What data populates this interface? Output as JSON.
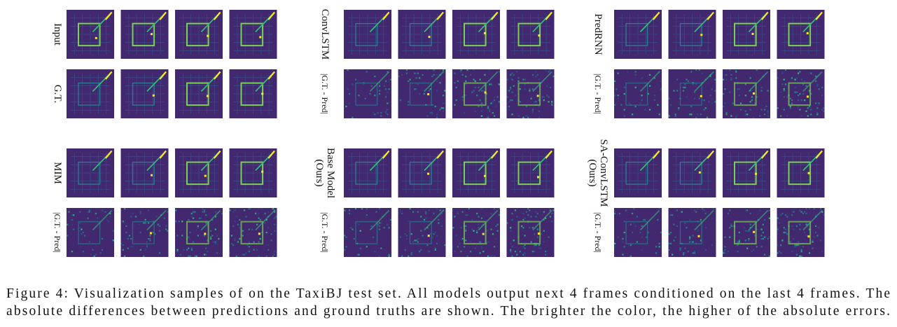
{
  "figure": {
    "panels": [
      {
        "rows": [
          {
            "label": [
              "Input"
            ]
          },
          {
            "label": [
              "G.T."
            ]
          }
        ]
      },
      {
        "rows": [
          {
            "label": [
              "ConvLSTM"
            ]
          },
          {
            "label": [
              "|G.T. - Pred|"
            ]
          }
        ]
      },
      {
        "rows": [
          {
            "label": [
              "PredRNN"
            ]
          },
          {
            "label": [
              "|G.T. - Pred|"
            ]
          }
        ]
      },
      {
        "rows": [
          {
            "label": [
              "MIM"
            ]
          },
          {
            "label": [
              "|G.T. - Pred|"
            ]
          }
        ]
      },
      {
        "rows": [
          {
            "label": [
              "Base Model",
              "(Ours)"
            ]
          },
          {
            "label": [
              "|G.T. - Pred|"
            ]
          }
        ]
      },
      {
        "rows": [
          {
            "label": [
              "SA-ConvLSTM",
              "(Ours)"
            ]
          },
          {
            "label": [
              "|G.T. - Pred|"
            ]
          }
        ]
      }
    ],
    "caption": [
      "Figure 4: Visualization samples of on the TaxiBJ test set. All models output next 4 frames conditioned on the last 4 frames. The",
      "absolute differences between predictions and ground truths are shown. The brighter the color, the higher of the absolute errors."
    ]
  }
}
